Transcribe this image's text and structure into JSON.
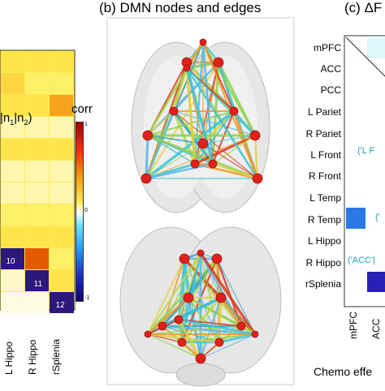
{
  "panel_a": {
    "partial_label": "|n",
    "partial_sub": "1",
    "partial_mid": "|n",
    "partial_sub2": "2",
    "partial_close": ")",
    "diag_numbers": [
      "10",
      "11",
      "12"
    ],
    "col_labels": [
      "L Hippo",
      "R Hippo",
      "rSplenia"
    ],
    "colorbar_title": "corr",
    "colorbar_ticks": [
      "1",
      "0",
      "-1"
    ]
  },
  "panel_b": {
    "title": "(b) DMN nodes and edges"
  },
  "panel_c": {
    "title": "(c) ΔF",
    "row_labels": [
      "mPFC",
      "ACC",
      "PCC",
      "L Pariet",
      "R Pariet",
      "L Front",
      "R Front",
      "L Temp",
      "R Temp",
      "L Hippo",
      "R Hippo",
      "rSplenia"
    ],
    "col_labels": [
      "mPFC",
      "ACC"
    ],
    "annotations": [
      "('L F",
      "('",
      "('ACC'|"
    ],
    "caption": "Chemo  effe"
  },
  "colors": {
    "hot_yellow": "#ffe94a",
    "hot_orange": "#f5a21c",
    "dark_orange": "#e55a00",
    "deep_navy": "#2b1878",
    "blue_cell": "#2a78e6",
    "navy_cell": "#2a1fb5",
    "annotation_teal": "#1aa3b5",
    "node_red": "#e0211b"
  }
}
